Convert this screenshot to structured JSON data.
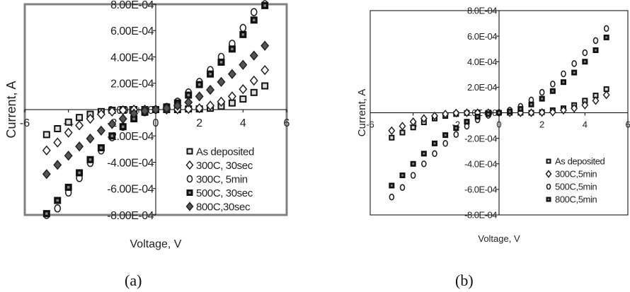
{
  "chart_data": [
    {
      "type": "scatter",
      "panel_label": "(a)",
      "xlabel": "Voltage, V",
      "ylabel": "Current, A",
      "xlim": [
        -6,
        6
      ],
      "ylim": [
        -0.0008,
        0.0008
      ],
      "x_ticks": [
        "-6",
        "-4",
        "-2",
        "0",
        "2",
        "4",
        "6"
      ],
      "y_ticks": [
        "8.00E-04",
        "6.00E-04",
        "4.00E-04",
        "2.00E-04",
        "0.00E+00",
        "-2.00E-04",
        "-4.00E-04",
        "-6.00E-04",
        "-8.00E-04"
      ],
      "grid": false,
      "legend_placement": "bottom-right",
      "frame_color": "#808080",
      "series": [
        {
          "name": "As deposited",
          "marker": "square-hollow",
          "x": [
            -5,
            -4.5,
            -4,
            -3.5,
            -3,
            -2.5,
            -2,
            -1.5,
            -1,
            -0.5,
            0,
            0.5,
            1,
            1.5,
            2,
            2.5,
            3,
            3.5,
            4,
            4.5,
            5
          ],
          "y": [
            -0.00019,
            -0.000145,
            -9.5e-05,
            -6e-05,
            -3.5e-05,
            -1.5e-05,
            -5e-06,
            0,
            0,
            0,
            0,
            0,
            0,
            5e-06,
            5e-06,
            1e-05,
            2.5e-05,
            5e-05,
            8e-05,
            0.00013,
            0.00018
          ]
        },
        {
          "name": "300C, 30sec",
          "marker": "diamond-hollow",
          "x": [
            -5,
            -4.5,
            -4,
            -3.5,
            -3,
            -2.5,
            -2,
            -1.5,
            -1,
            -0.5,
            0,
            0.5,
            1,
            1.5,
            2,
            2.5,
            3,
            3.5,
            4,
            4.5,
            5
          ],
          "y": [
            -0.00031,
            -0.00025,
            -0.000175,
            -0.00012,
            -7e-05,
            -3.5e-05,
            -1.5e-05,
            -5e-06,
            0,
            0,
            0,
            0,
            2e-06,
            5e-06,
            1e-05,
            3e-05,
            6e-05,
            0.0001,
            0.000155,
            0.00022,
            0.0003
          ]
        },
        {
          "name": "300C, 5min",
          "marker": "circle-hollow",
          "x": [
            -5,
            -4.5,
            -4,
            -3.5,
            -3,
            -2.5,
            -2,
            -1.5,
            -1,
            -0.5,
            0,
            0.5,
            1,
            1.5,
            2,
            2.5,
            3,
            3.5,
            4,
            4.5,
            5
          ],
          "y": [
            -0.0008,
            -0.00075,
            -0.00063,
            -0.00052,
            -0.000405,
            -0.00031,
            -0.00021,
            -0.00013,
            -6e-05,
            -2e-05,
            0,
            2e-05,
            6e-05,
            0.00013,
            0.00021,
            0.0003,
            0.0004,
            0.0005,
            0.00062,
            0.00074,
            0.0008
          ]
        },
        {
          "name": "500C, 30sec",
          "marker": "square-filled",
          "x": [
            -5,
            -4.5,
            -4,
            -3.5,
            -3,
            -2.5,
            -2,
            -1.5,
            -1,
            -0.5,
            0,
            0.5,
            1,
            1.5,
            2,
            2.5,
            3,
            3.5,
            4,
            4.5,
            5
          ],
          "y": [
            -0.00079,
            -0.00069,
            -0.00059,
            -0.00048,
            -0.00038,
            -0.00029,
            -0.0002,
            -0.00013,
            -7e-05,
            -2e-05,
            0,
            2e-05,
            5e-05,
            0.00011,
            0.00019,
            0.00027,
            0.00036,
            0.00046,
            0.00057,
            0.00068,
            0.00079
          ]
        },
        {
          "name": "800C,30sec",
          "marker": "diamond-filled",
          "x": [
            -5,
            -4.5,
            -4,
            -3.5,
            -3,
            -2.5,
            -2,
            -1.5,
            -1,
            -0.5,
            0,
            0.5,
            1,
            1.5,
            2,
            2.5,
            3,
            3.5,
            4,
            4.5,
            5
          ],
          "y": [
            -0.00049,
            -0.00042,
            -0.00035,
            -0.00028,
            -0.00022,
            -0.00016,
            -0.00011,
            -7e-05,
            -3e-05,
            -1e-05,
            0,
            1e-05,
            3e-05,
            5.5e-05,
            0.0001,
            0.00015,
            0.00021,
            0.00027,
            0.00034,
            0.00041,
            0.000485
          ]
        }
      ]
    },
    {
      "type": "scatter",
      "panel_label": "(b)",
      "xlabel": "Voltage, V",
      "ylabel": "Current, A",
      "xlim": [
        -6,
        6
      ],
      "ylim": [
        -0.0008,
        0.0008
      ],
      "x_ticks": [
        "-6",
        "-4",
        "-2",
        "0",
        "2",
        "4",
        "6"
      ],
      "y_ticks": [
        "8.0E-04",
        "6.0E-04",
        "4.0E-04",
        "2.0E-04",
        "0.0E+00",
        "-2.0E-04",
        "-4.0E-04",
        "-6.0E-04",
        "-8.0E-04"
      ],
      "grid": false,
      "legend_placement": "bottom-right",
      "frame_color": "#000000",
      "series": [
        {
          "name": "As deposited",
          "marker": "square-hollow",
          "x": [
            -5,
            -4.5,
            -4,
            -3.5,
            -3,
            -2.5,
            -2,
            -1.5,
            -1,
            -0.5,
            0,
            0.5,
            1,
            1.5,
            2,
            2.5,
            3,
            3.5,
            4,
            4.5,
            5
          ],
          "y": [
            -0.000195,
            -0.000155,
            -0.000115,
            -7.5e-05,
            -4.5e-05,
            -2.5e-05,
            -1e-05,
            -2e-06,
            0,
            0,
            0,
            0,
            0,
            0,
            5e-06,
            2e-05,
            3.5e-05,
            6e-05,
            9.5e-05,
            0.000135,
            0.000185
          ]
        },
        {
          "name": "300C,5min",
          "marker": "diamond-hollow",
          "x": [
            -5,
            -4.5,
            -4,
            -3.5,
            -3,
            -2.5,
            -2,
            -1.5,
            -1,
            -0.5,
            0,
            0.5,
            1,
            1.5,
            2,
            2.5,
            3,
            3.5,
            4,
            4.5,
            5
          ],
          "y": [
            -0.00014,
            -0.000105,
            -7e-05,
            -4.5e-05,
            -2.5e-05,
            -1e-05,
            -2e-06,
            0,
            0,
            0,
            0,
            0,
            0,
            0,
            2e-06,
            5e-06,
            2e-05,
            3.5e-05,
            6e-05,
            9.5e-05,
            0.00014
          ]
        },
        {
          "name": "500C,5min",
          "marker": "circle-hollow",
          "x": [
            -5,
            -4.5,
            -4,
            -3.5,
            -3,
            -2.5,
            -2,
            -1.5,
            -1,
            -0.5,
            0,
            0.5,
            1,
            1.5,
            2,
            2.5,
            3,
            3.5,
            4,
            4.5,
            5
          ],
          "y": [
            -0.00066,
            -0.000585,
            -0.00049,
            -0.0004,
            -0.00032,
            -0.00024,
            -0.00017,
            -0.000105,
            -5.5e-05,
            -2e-05,
            0,
            2e-05,
            5e-05,
            0.0001,
            0.00016,
            0.000225,
            0.000305,
            0.000385,
            0.00047,
            0.000565,
            0.00066
          ]
        },
        {
          "name": "800C,5min",
          "marker": "square-filled",
          "x": [
            -5,
            -4.5,
            -4,
            -3.5,
            -3,
            -2.5,
            -2,
            -1.5,
            -1,
            -0.5,
            0,
            0.5,
            1,
            1.5,
            2,
            2.5,
            3,
            3.5,
            4,
            4.5,
            5
          ],
          "y": [
            -0.00057,
            -0.00049,
            -0.0004,
            -0.00032,
            -0.00024,
            -0.000175,
            -0.00012,
            -7e-05,
            -3e-05,
            -1e-05,
            0,
            1e-05,
            3e-05,
            6.5e-05,
            0.00011,
            0.00017,
            0.00024,
            0.000315,
            0.0004,
            0.00049,
            0.00059
          ]
        }
      ]
    }
  ]
}
